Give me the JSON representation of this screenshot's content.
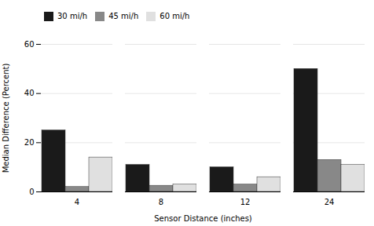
{
  "chart_data": {
    "type": "bar",
    "categories": [
      "4",
      "8",
      "12",
      "24"
    ],
    "series": [
      {
        "name": "30 mi/h",
        "color": "#1a1a1a",
        "values": [
          25,
          11,
          10,
          50
        ]
      },
      {
        "name": "45 mi/h",
        "color": "#888888",
        "values": [
          2,
          2.5,
          3,
          13
        ]
      },
      {
        "name": "60 mi/h",
        "color": "#e0e0e0",
        "values": [
          14,
          3,
          6,
          11
        ]
      }
    ],
    "xlabel": "Sensor Distance (inches)",
    "ylabel": "Median Difference (Percent)",
    "ylim": [
      0,
      60
    ],
    "yticks": [
      0,
      20,
      40,
      60
    ],
    "grid": true,
    "legend": "upper left"
  }
}
